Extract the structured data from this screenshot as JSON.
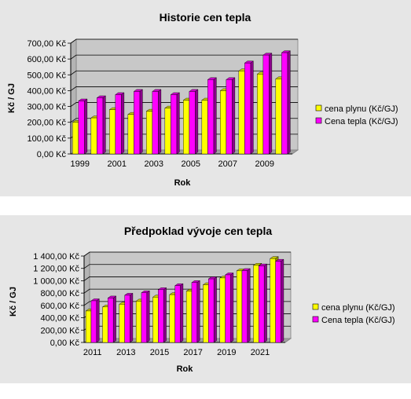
{
  "chart_data": [
    {
      "type": "bar",
      "title": "Historie cen tepla",
      "xlabel": "Rok",
      "ylabel": "Kč / GJ",
      "ylim": [
        0,
        700
      ],
      "y_ticks": [
        "0,00 Kč",
        "100,00 Kč",
        "200,00 Kč",
        "300,00 Kč",
        "400,00 Kč",
        "500,00 Kč",
        "600,00 Kč",
        "700,00 Kč"
      ],
      "categories": [
        "1999",
        "2000",
        "2001",
        "2002",
        "2003",
        "2004",
        "2005",
        "2006",
        "2007",
        "2008",
        "2009",
        "2010"
      ],
      "x_tick_labels": [
        "1999",
        "",
        "2001",
        "",
        "2003",
        "",
        "2005",
        "",
        "2007",
        "",
        "2009",
        ""
      ],
      "legend_position": "right",
      "grid": true,
      "series": [
        {
          "name": "cena plynu (Kč/GJ)",
          "color": "#ffff00",
          "values": [
            200,
            228,
            280,
            250,
            270,
            290,
            340,
            340,
            400,
            525,
            505,
            475
          ]
        },
        {
          "name": "Cena tepla (Kč/GJ)",
          "color": "#ff00ff",
          "values": [
            335,
            355,
            375,
            395,
            395,
            375,
            395,
            470,
            470,
            575,
            625,
            640
          ]
        }
      ]
    },
    {
      "type": "bar",
      "title": "Předpoklad vývoje cen tepla",
      "xlabel": "Rok",
      "ylabel": "Kč / GJ",
      "ylim": [
        0,
        1400
      ],
      "y_ticks": [
        "0,00 Kč",
        "200,00 Kč",
        "400,00 Kč",
        "600,00 Kč",
        "800,00 Kč",
        "1 000,00 Kč",
        "1 200,00 Kč",
        "1 400,00 Kč"
      ],
      "categories": [
        "2011",
        "2012",
        "2013",
        "2014",
        "2015",
        "2016",
        "2017",
        "2018",
        "2019",
        "2020",
        "2021",
        "2022"
      ],
      "x_tick_labels": [
        "2011",
        "",
        "2013",
        "",
        "2015",
        "",
        "2017",
        "",
        "2019",
        "",
        "2021",
        ""
      ],
      "legend_position": "right",
      "grid": true,
      "series": [
        {
          "name": "cena plynu (Kč/GJ)",
          "color": "#ffff00",
          "values": [
            510,
            575,
            620,
            670,
            735,
            775,
            830,
            935,
            1045,
            1160,
            1250,
            1360
          ]
        },
        {
          "name": "Cena tepla (Kč/GJ)",
          "color": "#ff00ff",
          "values": [
            675,
            720,
            765,
            805,
            855,
            920,
            970,
            1030,
            1095,
            1165,
            1240,
            1315
          ]
        }
      ]
    }
  ]
}
